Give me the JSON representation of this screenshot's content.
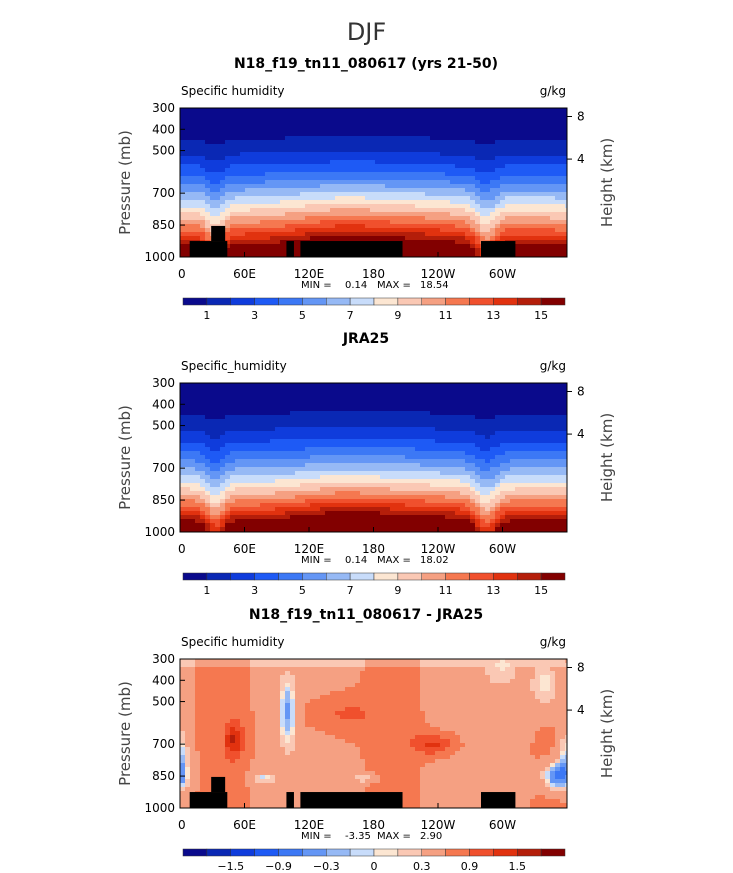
{
  "season_title": "DJF",
  "chart_data": [
    {
      "type": "heatmap",
      "title": "N18_f19_tn11_080617 (yrs 21-50)",
      "field_label": "Specific humidity",
      "units": "g/kg",
      "ylabel": "Pressure (mb)",
      "ylabel_right": "Height (km)",
      "xticks": [
        "0",
        "60E",
        "120E",
        "180",
        "120W",
        "60W"
      ],
      "xtick_values": [
        0,
        60,
        120,
        180,
        240,
        300
      ],
      "xlim": [
        0,
        360
      ],
      "yticks": [
        "300",
        "400",
        "500",
        "700",
        "850",
        "1000"
      ],
      "ytick_values": [
        300,
        400,
        500,
        700,
        850,
        1000
      ],
      "ylim": [
        300,
        1000
      ],
      "yticks_right": [
        "8",
        "4"
      ],
      "ytick_right_pressure": [
        340,
        540
      ],
      "min_label": "MIN =",
      "min": "0.14",
      "max_label": "MAX =",
      "max": "18.54",
      "levels": [
        1,
        2,
        3,
        4,
        5,
        6,
        7,
        8,
        9,
        10,
        11,
        12,
        13,
        14,
        15
      ],
      "colorbar_labels": [
        "1",
        "3",
        "5",
        "7",
        "9",
        "11",
        "13",
        "15"
      ],
      "field": "model",
      "land_mask": true
    },
    {
      "type": "heatmap",
      "title": "JRA25",
      "field_label": "Specific_humidity",
      "units": "g/kg",
      "ylabel": "Pressure (mb)",
      "ylabel_right": "Height (km)",
      "xticks": [
        "0",
        "60E",
        "120E",
        "180",
        "120W",
        "60W"
      ],
      "xtick_values": [
        0,
        60,
        120,
        180,
        240,
        300
      ],
      "xlim": [
        0,
        360
      ],
      "yticks": [
        "300",
        "400",
        "500",
        "700",
        "850",
        "1000"
      ],
      "ytick_values": [
        300,
        400,
        500,
        700,
        850,
        1000
      ],
      "ylim": [
        300,
        1000
      ],
      "yticks_right": [
        "8",
        "4"
      ],
      "ytick_right_pressure": [
        340,
        540
      ],
      "min_label": "MIN =",
      "min": "0.14",
      "max_label": "MAX =",
      "max": "18.02",
      "levels": [
        1,
        2,
        3,
        4,
        5,
        6,
        7,
        8,
        9,
        10,
        11,
        12,
        13,
        14,
        15
      ],
      "colorbar_labels": [
        "1",
        "3",
        "5",
        "7",
        "9",
        "11",
        "13",
        "15"
      ],
      "field": "obs",
      "land_mask": false
    },
    {
      "type": "heatmap",
      "title": "N18_f19_tn11_080617 - JRA25",
      "field_label": "Specific humidity",
      "units": "g/kg",
      "ylabel": "Pressure (mb)",
      "ylabel_right": "Height (km)",
      "xticks": [
        "0",
        "60E",
        "120E",
        "180",
        "120W",
        "60W"
      ],
      "xtick_values": [
        0,
        60,
        120,
        180,
        240,
        300
      ],
      "xlim": [
        0,
        360
      ],
      "yticks": [
        "300",
        "400",
        "500",
        "700",
        "850",
        "1000"
      ],
      "ytick_values": [
        300,
        400,
        500,
        700,
        850,
        1000
      ],
      "ylim": [
        300,
        1000
      ],
      "yticks_right": [
        "8",
        "4"
      ],
      "ytick_right_pressure": [
        340,
        540
      ],
      "min_label": "MIN =",
      "min": "-3.35",
      "max_label": "MAX =",
      "max": "2.90",
      "levels": [
        -1.8,
        -1.5,
        -1.2,
        -0.9,
        -0.6,
        -0.3,
        -0.1,
        0,
        0.1,
        0.3,
        0.6,
        0.9,
        1.2,
        1.5,
        1.8
      ],
      "colorbar_labels": [
        "−1.5",
        "−0.9",
        "−0.3",
        "0",
        "0.3",
        "0.9",
        "1.5"
      ],
      "field": "diff",
      "land_mask": true
    }
  ],
  "colors": [
    "#0a0a8c",
    "#0a28b4",
    "#0f3cdc",
    "#1e5af5",
    "#3c78f5",
    "#6496f5",
    "#96b9f5",
    "#c8dcfa",
    "#fce6d2",
    "#fac8b4",
    "#f5a082",
    "#f57850",
    "#f0502d",
    "#e1320f",
    "#b41e0a",
    "#820000"
  ],
  "land_mask_boxes": [
    {
      "lon": [
        9,
        44
      ],
      "p": [
        925,
        1000
      ]
    },
    {
      "lon": [
        29,
        42
      ],
      "p": [
        854,
        925
      ]
    },
    {
      "lon": [
        99,
        106
      ],
      "p": [
        925,
        1000
      ]
    },
    {
      "lon": [
        112,
        207
      ],
      "p": [
        925,
        1000
      ]
    },
    {
      "lon": [
        280,
        312
      ],
      "p": [
        925,
        1000
      ]
    }
  ]
}
